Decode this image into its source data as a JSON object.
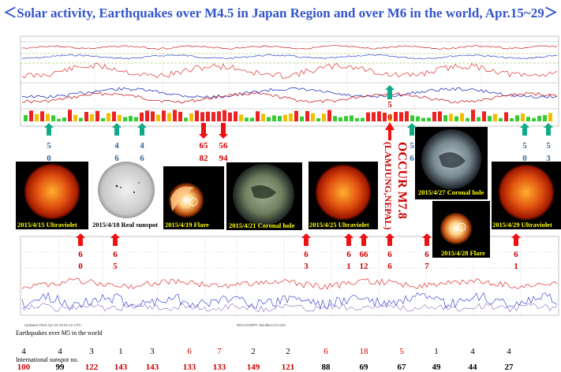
{
  "title": "＜Solar activity, Earthquakes over M4.5 in Japan Region and over M6 in the world, Apr.15~29＞",
  "image_labels": [
    {
      "text": "2015/4/15 Ultraviolet"
    },
    {
      "text": "2015/4/18 Real sunspot"
    },
    {
      "text": "2015/4/19 Flare"
    },
    {
      "text": "2015/4/21  Coronal hole"
    },
    {
      "text": "2015/4/25 Ultraviolet"
    },
    {
      "text": "2015/4/27 Coronal hole"
    },
    {
      "text": "2015/4/28 Flare"
    },
    {
      "text": "2015/4/29 Ultraviolet"
    }
  ],
  "nepal_annotation": {
    "event": "OCCUR M7.8",
    "place": "(LAMJUNG,NEPAL)"
  },
  "row_labels": {
    "earthquakes": "Earthquakes over M5 in the world",
    "sunspot": "International sunspot no."
  },
  "chart_data": {
    "type": "table",
    "title": "＜Solar activity, Earthquakes over M4.5 in Japan Region and over M6 in the world, Apr.15~29＞",
    "upper_markers": [
      {
        "lines": [
          "5",
          "0"
        ],
        "color": "teal"
      },
      {
        "lines": [
          "4",
          "6"
        ],
        "color": "teal"
      },
      {
        "lines": [
          "4",
          "6"
        ],
        "color": "teal"
      },
      {
        "lines": [
          "65",
          "82"
        ],
        "color": "red"
      },
      {
        "lines": [
          "56",
          "94"
        ],
        "color": "red"
      },
      {
        "lines": [
          "5",
          "0"
        ],
        "color": "teal"
      },
      {
        "lines": [
          "5",
          "6"
        ],
        "color": "teal"
      },
      {
        "lines": [
          "5",
          "0"
        ],
        "color": "teal"
      },
      {
        "lines": [
          "5",
          "3"
        ],
        "color": "teal"
      }
    ],
    "lower_markers": [
      {
        "lines": [
          "6",
          "0"
        ]
      },
      {
        "lines": [
          "6",
          "5"
        ]
      },
      {
        "lines": [
          "6",
          "3"
        ]
      },
      {
        "lines": [
          "6",
          "1"
        ]
      },
      {
        "lines": [
          "66",
          "12"
        ]
      },
      {
        "lines": [
          "6",
          "6"
        ]
      },
      {
        "lines": [
          "6",
          "7"
        ]
      },
      {
        "lines": [
          "6",
          "1"
        ]
      }
    ],
    "earthquakes_over_m5": [
      {
        "value": "4",
        "color": "#000000"
      },
      {
        "value": "4",
        "color": "#000000"
      },
      {
        "value": "3",
        "color": "#000000"
      },
      {
        "value": "1",
        "color": "#000000"
      },
      {
        "value": "3",
        "color": "#000000"
      },
      {
        "value": "6",
        "color": "#cc0000"
      },
      {
        "value": "7",
        "color": "#cc0000"
      },
      {
        "value": "2",
        "color": "#000000"
      },
      {
        "value": "2",
        "color": "#000000"
      },
      {
        "value": "6",
        "color": "#cc0000"
      },
      {
        "value": "18",
        "color": "#cc0000"
      },
      {
        "value": "5",
        "color": "#cc0000"
      },
      {
        "value": "1",
        "color": "#000000"
      },
      {
        "value": "4",
        "color": "#000000"
      },
      {
        "value": "4",
        "color": "#000000"
      }
    ],
    "international_sunspot_no": [
      {
        "value": "100",
        "color": "#cc0000"
      },
      {
        "value": "99",
        "color": "#000000"
      },
      {
        "value": "122",
        "color": "#cc0000"
      },
      {
        "value": "143",
        "color": "#cc0000"
      },
      {
        "value": "143",
        "color": "#cc0000"
      },
      {
        "value": "133",
        "color": "#cc0000"
      },
      {
        "value": "133",
        "color": "#cc0000"
      },
      {
        "value": "149",
        "color": "#cc0000"
      },
      {
        "value": "121",
        "color": "#cc0000"
      },
      {
        "value": "88",
        "color": "#000000"
      },
      {
        "value": "69",
        "color": "#000000"
      },
      {
        "value": "67",
        "color": "#000000"
      },
      {
        "value": "49",
        "color": "#000000"
      },
      {
        "value": "44",
        "color": "#000000"
      },
      {
        "value": "27",
        "color": "#000000"
      }
    ]
  },
  "colors": {
    "title": "#3355cc",
    "marker_red": "#ee1111",
    "marker_teal": "#11aa88",
    "image_label": "#ffff00"
  }
}
